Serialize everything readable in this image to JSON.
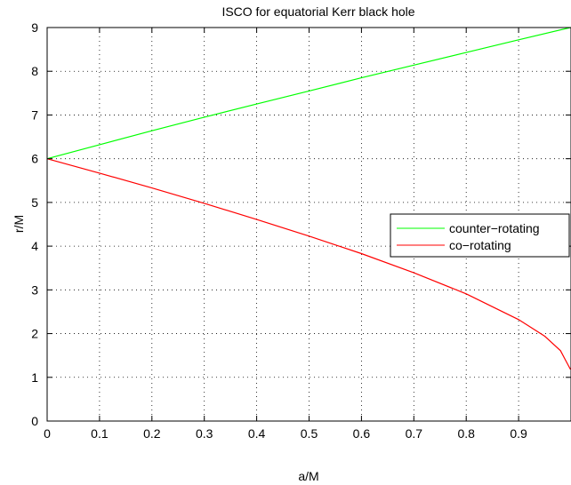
{
  "chart_data": {
    "type": "line",
    "title": "ISCO for equatorial Kerr black hole",
    "xlabel": "a/M",
    "ylabel": "r/M",
    "xlim": [
      0,
      1
    ],
    "ylim": [
      0,
      9
    ],
    "x_ticks": [
      "0",
      "0.1",
      "0.2",
      "0.3",
      "0.4",
      "0.5",
      "0.6",
      "0.7",
      "0.8",
      "0.9"
    ],
    "y_ticks": [
      "0",
      "1",
      "2",
      "3",
      "4",
      "5",
      "6",
      "7",
      "8",
      "9"
    ],
    "grid": true,
    "legend_position": "center-right",
    "series": [
      {
        "name": "counter−rotating",
        "color": "#00ff00",
        "x": [
          0,
          0.1,
          0.2,
          0.3,
          0.4,
          0.5,
          0.6,
          0.7,
          0.8,
          0.9,
          0.999
        ],
        "y": [
          6.0,
          6.32,
          6.64,
          6.95,
          7.25,
          7.55,
          7.85,
          8.14,
          8.43,
          8.72,
          9.0
        ]
      },
      {
        "name": "co−rotating",
        "color": "#ff0000",
        "x": [
          0,
          0.1,
          0.2,
          0.3,
          0.4,
          0.5,
          0.6,
          0.7,
          0.8,
          0.9,
          0.95,
          0.98,
          0.999
        ],
        "y": [
          6.0,
          5.67,
          5.33,
          4.98,
          4.61,
          4.23,
          3.83,
          3.39,
          2.91,
          2.32,
          1.94,
          1.61,
          1.18
        ]
      }
    ]
  }
}
